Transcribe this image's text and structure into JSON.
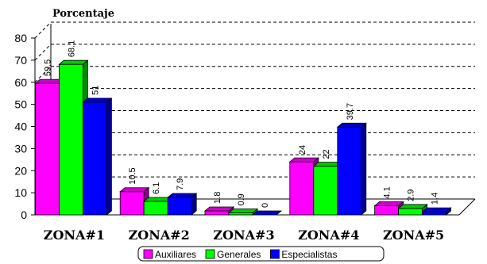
{
  "chart_data": {
    "type": "bar",
    "ylabel": "Porcentaje",
    "categories": [
      "ZONA#1",
      "ZONA#2",
      "ZONA#3",
      "ZONA#4",
      "ZONA#5"
    ],
    "ylim": [
      0,
      80
    ],
    "yticks": [
      0,
      10,
      20,
      30,
      40,
      50,
      60,
      70,
      80
    ],
    "grid": true,
    "legend_position": "bottom",
    "series": [
      {
        "name": "Auxiliares",
        "color": "#ff00ff",
        "values": [
          59.5,
          10.5,
          1.8,
          24,
          4.1
        ],
        "labels": [
          "59.5",
          "10.5",
          "1.8",
          "24",
          "4.1"
        ]
      },
      {
        "name": "Generales",
        "color": "#00ff00",
        "values": [
          68.1,
          6.1,
          0.9,
          22,
          2.9
        ],
        "labels": [
          "68.1",
          "6.1",
          "0.9",
          "22",
          "2.9"
        ]
      },
      {
        "name": "Especialistas",
        "color": "#0000ff",
        "values": [
          51,
          7.9,
          0,
          39.7,
          1.4
        ],
        "labels": [
          "51",
          "7.9",
          "0",
          "39.7",
          "1.4"
        ]
      }
    ]
  }
}
